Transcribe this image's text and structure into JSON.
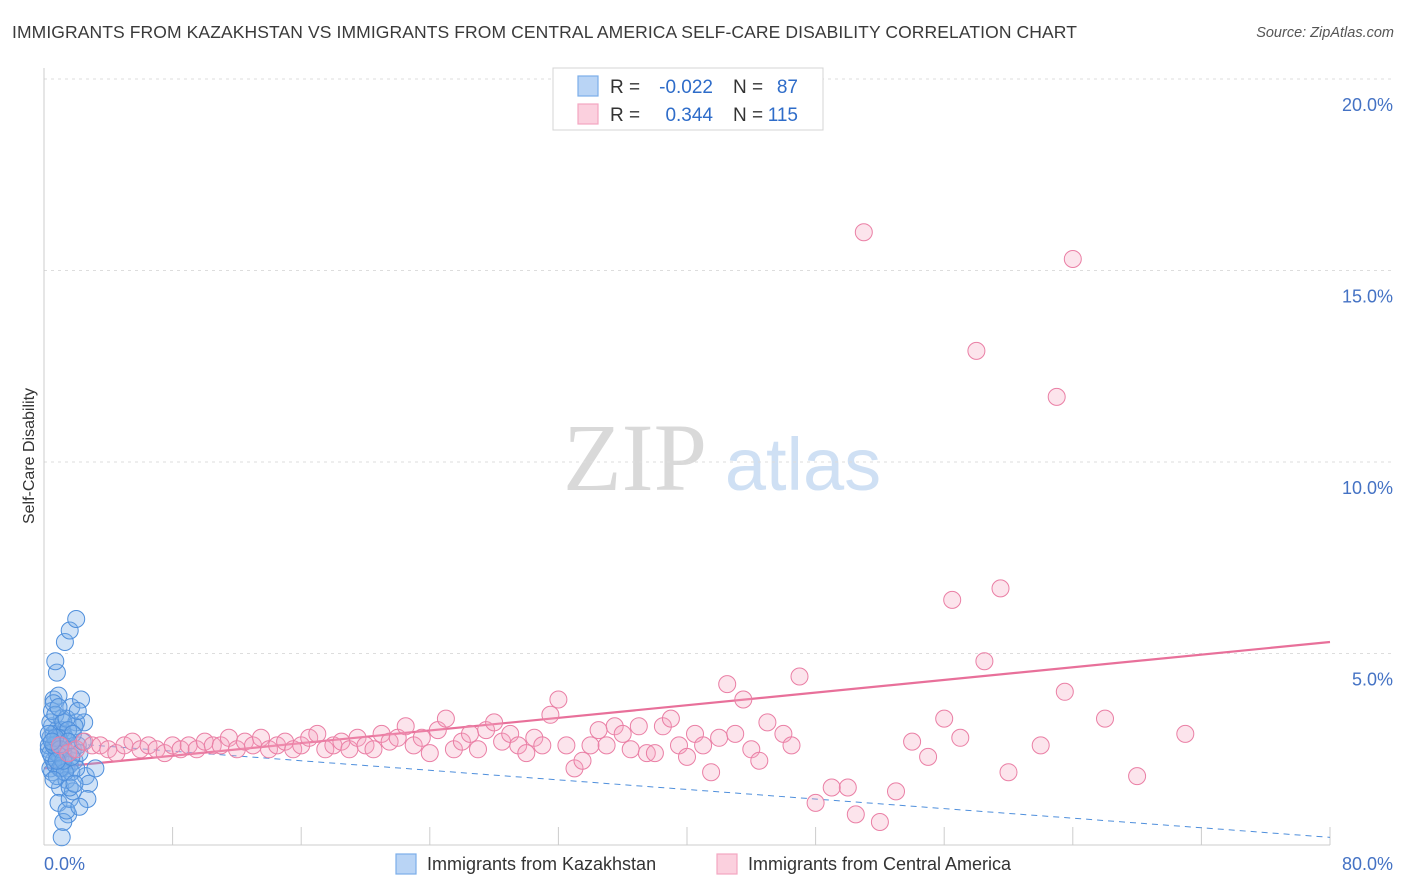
{
  "title": "IMMIGRANTS FROM KAZAKHSTAN VS IMMIGRANTS FROM CENTRAL AMERICA SELF-CARE DISABILITY CORRELATION CHART",
  "source": "Source: ZipAtlas.com",
  "watermark": {
    "zip": "ZIP",
    "atlas": "atlas"
  },
  "chart_data": {
    "type": "scatter",
    "ylabel": "Self-Care Disability",
    "xlabel": "",
    "xlim": [
      0,
      80
    ],
    "ylim": [
      0,
      20
    ],
    "x_tick_labels": [
      "0.0%",
      "80.0%"
    ],
    "y_ticks": [
      5,
      10,
      15,
      20
    ],
    "y_tick_labels": [
      "5.0%",
      "10.0%",
      "15.0%",
      "20.0%"
    ],
    "legend": {
      "series": [
        {
          "r_label": "R =",
          "r_value": "-0.022",
          "n_label": "N =",
          "n_value": "87"
        },
        {
          "r_label": "R =",
          "r_value": "0.344",
          "n_label": "N =",
          "n_value": "115"
        }
      ]
    },
    "series": [
      {
        "name": "Immigrants from Kazakhstan",
        "color": "#7baee8",
        "stroke": "#4f8fdc",
        "trend": {
          "x0": 0,
          "y0": 2.7,
          "x1": 80,
          "y1": 0.2,
          "style": "dashed"
        },
        "points": [
          [
            0.3,
            2.5
          ],
          [
            0.4,
            2.8
          ],
          [
            0.5,
            3.1
          ],
          [
            0.6,
            2.2
          ],
          [
            0.5,
            1.9
          ],
          [
            0.7,
            2.6
          ],
          [
            0.8,
            3.0
          ],
          [
            0.9,
            2.4
          ],
          [
            1.0,
            2.7
          ],
          [
            1.1,
            3.3
          ],
          [
            0.6,
            3.8
          ],
          [
            0.8,
            4.5
          ],
          [
            0.7,
            4.8
          ],
          [
            0.9,
            3.9
          ],
          [
            1.2,
            2.9
          ],
          [
            1.3,
            2.3
          ],
          [
            1.4,
            2.0
          ],
          [
            1.0,
            1.5
          ],
          [
            0.9,
            1.1
          ],
          [
            1.5,
            0.8
          ],
          [
            1.6,
            1.2
          ],
          [
            1.2,
            0.6
          ],
          [
            1.8,
            2.5
          ],
          [
            1.7,
            3.6
          ],
          [
            2.0,
            3.2
          ],
          [
            1.3,
            5.3
          ],
          [
            1.6,
            5.6
          ],
          [
            2.0,
            5.9
          ],
          [
            2.3,
            3.8
          ],
          [
            2.5,
            3.2
          ],
          [
            2.6,
            1.8
          ],
          [
            2.8,
            1.6
          ],
          [
            2.7,
            1.2
          ],
          [
            1.9,
            2.2
          ],
          [
            2.1,
            2.6
          ],
          [
            0.4,
            2.0
          ],
          [
            0.5,
            2.3
          ],
          [
            0.6,
            2.9
          ],
          [
            0.7,
            2.1
          ],
          [
            0.8,
            1.8
          ],
          [
            0.3,
            2.6
          ],
          [
            0.4,
            3.2
          ],
          [
            0.9,
            2.5
          ],
          [
            1.0,
            2.3
          ],
          [
            1.1,
            2.0
          ],
          [
            1.2,
            2.6
          ],
          [
            1.3,
            2.8
          ],
          [
            1.4,
            1.7
          ],
          [
            1.5,
            2.4
          ],
          [
            1.6,
            2.1
          ],
          [
            1.7,
            1.9
          ],
          [
            1.8,
            1.4
          ],
          [
            1.9,
            3.1
          ],
          [
            2.0,
            2.0
          ],
          [
            2.2,
            2.4
          ],
          [
            2.4,
            2.7
          ],
          [
            0.5,
            3.5
          ],
          [
            0.6,
            3.7
          ],
          [
            0.7,
            3.4
          ],
          [
            1.1,
            3.0
          ],
          [
            1.2,
            3.2
          ],
          [
            1.4,
            3.3
          ],
          [
            1.5,
            3.0
          ],
          [
            0.8,
            2.4
          ],
          [
            0.9,
            2.8
          ],
          [
            1.0,
            2.0
          ],
          [
            1.3,
            1.9
          ],
          [
            1.6,
            1.5
          ],
          [
            1.8,
            2.9
          ],
          [
            2.1,
            3.5
          ],
          [
            0.4,
            2.4
          ],
          [
            0.6,
            2.6
          ],
          [
            0.7,
            2.8
          ],
          [
            1.0,
            2.5
          ],
          [
            1.2,
            2.2
          ],
          [
            1.5,
            2.7
          ],
          [
            1.7,
            2.3
          ],
          [
            0.3,
            2.9
          ],
          [
            0.5,
            2.7
          ],
          [
            0.8,
            2.2
          ],
          [
            1.1,
            0.2
          ],
          [
            1.4,
            0.9
          ],
          [
            1.9,
            1.6
          ],
          [
            2.2,
            1.0
          ],
          [
            3.2,
            2.0
          ],
          [
            0.6,
            1.7
          ],
          [
            0.9,
            3.6
          ]
        ]
      },
      {
        "name": "Immigrants from Central America",
        "color": "#f4a6c1",
        "stroke": "#ea7fa5",
        "trend": {
          "x0": 0,
          "y0": 2.0,
          "x1": 80,
          "y1": 5.3,
          "style": "solid"
        },
        "points": [
          [
            1.0,
            2.6
          ],
          [
            1.5,
            2.4
          ],
          [
            2.0,
            2.5
          ],
          [
            2.5,
            2.7
          ],
          [
            3.0,
            2.6
          ],
          [
            3.5,
            2.6
          ],
          [
            4.0,
            2.5
          ],
          [
            4.5,
            2.4
          ],
          [
            5.0,
            2.6
          ],
          [
            5.5,
            2.7
          ],
          [
            6.0,
            2.5
          ],
          [
            6.5,
            2.6
          ],
          [
            7.0,
            2.5
          ],
          [
            7.5,
            2.4
          ],
          [
            8.0,
            2.6
          ],
          [
            8.5,
            2.5
          ],
          [
            9.0,
            2.6
          ],
          [
            9.5,
            2.5
          ],
          [
            10.0,
            2.7
          ],
          [
            10.5,
            2.6
          ],
          [
            11.0,
            2.6
          ],
          [
            11.5,
            2.8
          ],
          [
            12.0,
            2.5
          ],
          [
            12.5,
            2.7
          ],
          [
            13.0,
            2.6
          ],
          [
            13.5,
            2.8
          ],
          [
            14.0,
            2.5
          ],
          [
            14.5,
            2.6
          ],
          [
            15.0,
            2.7
          ],
          [
            15.5,
            2.5
          ],
          [
            16.0,
            2.6
          ],
          [
            16.5,
            2.8
          ],
          [
            17.0,
            2.9
          ],
          [
            17.5,
            2.5
          ],
          [
            18.0,
            2.6
          ],
          [
            18.5,
            2.7
          ],
          [
            19.0,
            2.5
          ],
          [
            19.5,
            2.8
          ],
          [
            20.0,
            2.6
          ],
          [
            20.5,
            2.5
          ],
          [
            21.0,
            2.9
          ],
          [
            21.5,
            2.7
          ],
          [
            22.0,
            2.8
          ],
          [
            22.5,
            3.1
          ],
          [
            23.0,
            2.6
          ],
          [
            23.5,
            2.8
          ],
          [
            24.0,
            2.4
          ],
          [
            24.5,
            3.0
          ],
          [
            25.0,
            3.3
          ],
          [
            25.5,
            2.5
          ],
          [
            26.0,
            2.7
          ],
          [
            26.5,
            2.9
          ],
          [
            27.0,
            2.5
          ],
          [
            27.5,
            3.0
          ],
          [
            28.0,
            3.2
          ],
          [
            28.5,
            2.7
          ],
          [
            29.0,
            2.9
          ],
          [
            29.5,
            2.6
          ],
          [
            30.0,
            2.4
          ],
          [
            30.5,
            2.8
          ],
          [
            31.0,
            2.6
          ],
          [
            31.5,
            3.4
          ],
          [
            32.0,
            3.8
          ],
          [
            32.5,
            2.6
          ],
          [
            33.0,
            2.0
          ],
          [
            33.5,
            2.2
          ],
          [
            34.0,
            2.6
          ],
          [
            34.5,
            3.0
          ],
          [
            35.0,
            2.6
          ],
          [
            35.5,
            3.1
          ],
          [
            36.0,
            2.9
          ],
          [
            36.5,
            2.5
          ],
          [
            37.0,
            3.1
          ],
          [
            37.5,
            2.4
          ],
          [
            38.0,
            2.4
          ],
          [
            38.5,
            3.1
          ],
          [
            39.0,
            3.3
          ],
          [
            39.5,
            2.6
          ],
          [
            40.0,
            2.3
          ],
          [
            40.5,
            2.9
          ],
          [
            41.0,
            2.6
          ],
          [
            41.5,
            1.9
          ],
          [
            42.0,
            2.8
          ],
          [
            42.5,
            4.2
          ],
          [
            43.0,
            2.9
          ],
          [
            43.5,
            3.8
          ],
          [
            44.0,
            2.5
          ],
          [
            45.0,
            3.2
          ],
          [
            46.0,
            2.9
          ],
          [
            47.0,
            4.4
          ],
          [
            50.0,
            1.5
          ],
          [
            50.5,
            0.8
          ],
          [
            48.0,
            1.1
          ],
          [
            49.0,
            1.5
          ],
          [
            52.0,
            0.6
          ],
          [
            53.0,
            1.4
          ],
          [
            56.5,
            6.4
          ],
          [
            58.0,
            12.9
          ],
          [
            59.5,
            6.7
          ],
          [
            58.5,
            4.8
          ],
          [
            60.0,
            1.9
          ],
          [
            63.0,
            11.7
          ],
          [
            63.5,
            4.0
          ],
          [
            66.0,
            3.3
          ],
          [
            68.0,
            1.8
          ],
          [
            71.0,
            2.9
          ],
          [
            51.0,
            16.0
          ],
          [
            64.0,
            15.3
          ],
          [
            56.0,
            3.3
          ],
          [
            62.0,
            2.6
          ],
          [
            44.5,
            2.2
          ],
          [
            46.5,
            2.6
          ],
          [
            54.0,
            2.7
          ],
          [
            55.0,
            2.3
          ],
          [
            57.0,
            2.8
          ]
        ]
      }
    ]
  }
}
